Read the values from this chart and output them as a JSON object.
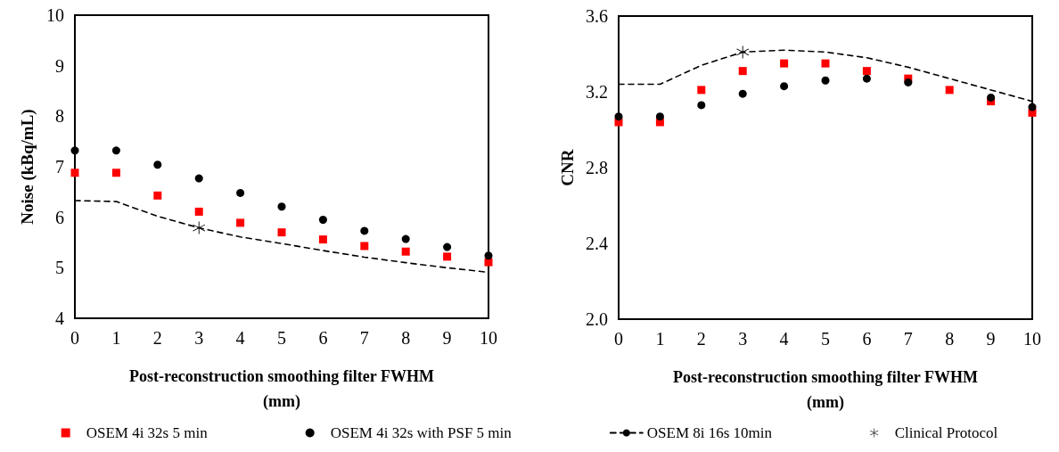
{
  "chart_data": [
    {
      "type": "scatter",
      "xlabel": "Post-reconstruction smoothing filter FWHM (mm)",
      "ylabel": "Noise (kBq/mL)",
      "x": [
        0,
        1,
        2,
        3,
        4,
        5,
        6,
        7,
        8,
        9,
        10
      ],
      "xlim": [
        0,
        10
      ],
      "xticks": [
        0,
        1,
        2,
        3,
        4,
        5,
        6,
        7,
        8,
        9,
        10
      ],
      "ylim": [
        4,
        10
      ],
      "yticks": [
        4,
        5,
        6,
        7,
        8,
        9,
        10
      ],
      "legend": "bottom",
      "series": [
        {
          "name": "OSEM 4i 32s 5 min",
          "type": "scatter",
          "marker": "square",
          "color": "#ff0000",
          "values": [
            6.88,
            6.88,
            6.43,
            6.11,
            5.89,
            5.7,
            5.56,
            5.43,
            5.32,
            5.22,
            5.11
          ]
        },
        {
          "name": "OSEM 4i 32s with PSF 5 min",
          "type": "scatter",
          "marker": "circle",
          "color": "#000000",
          "values": [
            7.32,
            7.32,
            7.04,
            6.77,
            6.48,
            6.21,
            5.95,
            5.73,
            5.57,
            5.41,
            5.24
          ]
        },
        {
          "name": "OSEM 8i 16s 10min",
          "type": "line",
          "marker": "none",
          "line_style": "dashed",
          "color": "#000000",
          "values": [
            6.33,
            6.31,
            6.02,
            5.79,
            5.61,
            5.48,
            5.34,
            5.21,
            5.1,
            5.0,
            4.91
          ]
        },
        {
          "name": "Clinical Protocol",
          "type": "scatter",
          "marker": "cross",
          "color": "#000000",
          "x": [
            3
          ],
          "values": [
            5.79
          ]
        }
      ]
    },
    {
      "type": "scatter",
      "xlabel": "Post-reconstruction smoothing filter FWHM (mm)",
      "ylabel": "CNR",
      "x": [
        0,
        1,
        2,
        3,
        4,
        5,
        6,
        7,
        8,
        9,
        10
      ],
      "xlim": [
        0,
        10
      ],
      "xticks": [
        0,
        1,
        2,
        3,
        4,
        5,
        6,
        7,
        8,
        9,
        10
      ],
      "ylim": [
        2.0,
        3.6
      ],
      "yticks": [
        {
          "value": 2.0,
          "label": "2.0"
        },
        2.4,
        2.8,
        3.2,
        3.6
      ],
      "series": [
        {
          "type": "scatter",
          "marker": "square",
          "color": "#ff0000",
          "values": [
            3.04,
            3.04,
            3.21,
            3.31,
            3.35,
            3.35,
            3.31,
            3.27,
            3.21,
            3.15,
            3.09
          ]
        },
        {
          "type": "scatter",
          "marker": "circle",
          "color": "#000000",
          "values": [
            3.07,
            3.07,
            3.13,
            3.19,
            3.23,
            3.26,
            3.27,
            3.25,
            null,
            3.17,
            3.12
          ]
        },
        {
          "type": "line",
          "marker": "none",
          "line_style": "dashed",
          "color": "#000000",
          "values": [
            3.24,
            3.24,
            3.34,
            3.41,
            3.42,
            3.41,
            3.38,
            3.33,
            3.27,
            3.21,
            3.15
          ]
        },
        {
          "type": "scatter",
          "marker": "cross",
          "color": "#000000",
          "x": [
            3
          ],
          "values": [
            3.41
          ]
        }
      ]
    }
  ]
}
